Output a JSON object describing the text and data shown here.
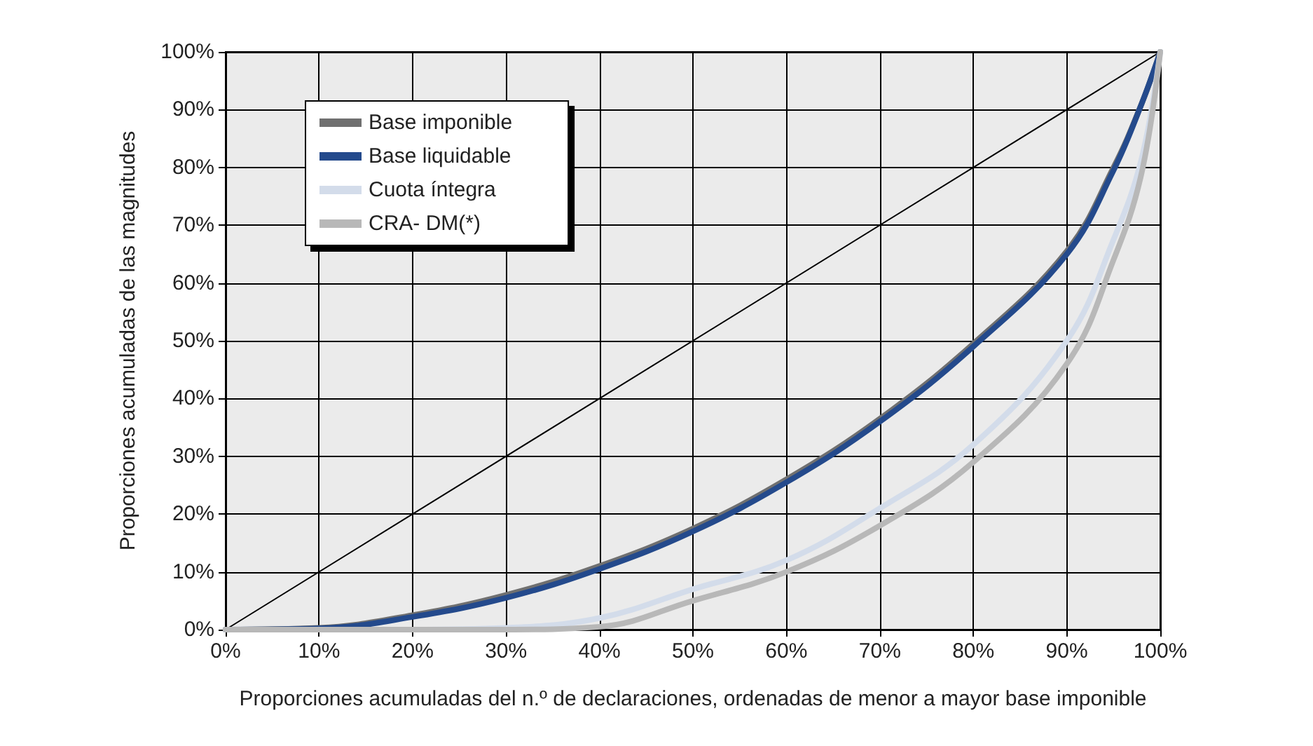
{
  "chart_data": {
    "type": "line",
    "xlabel": "Proporciones acumuladas del n.º de declaraciones, ordenadas de menor a mayor base imponible",
    "ylabel": "Proporciones acumuladas de las magnitudes",
    "x": [
      0,
      10,
      20,
      30,
      40,
      50,
      60,
      70,
      80,
      90,
      95,
      98,
      100
    ],
    "series": [
      {
        "name": "Base imponible",
        "color": "#707070",
        "values": [
          0,
          0.3,
          2.5,
          6,
          11,
          17.5,
          26,
          36.5,
          49.5,
          65.5,
          80,
          91,
          100
        ]
      },
      {
        "name": "Base liquidable",
        "color": "#244a8c",
        "values": [
          0,
          0.2,
          2.2,
          5.5,
          10.5,
          17,
          25.5,
          36,
          49,
          65,
          79.5,
          91,
          100
        ]
      },
      {
        "name": "Cuota íntegra",
        "color": "#d3dcea",
        "values": [
          0,
          0,
          0,
          0.3,
          2,
          7,
          12,
          21,
          32,
          50,
          67.5,
          81.5,
          100
        ]
      },
      {
        "name": "CRA- DM(*)",
        "color": "#b8b8b8",
        "values": [
          0,
          0,
          0,
          0,
          0.5,
          5,
          10,
          18,
          29,
          46,
          64,
          79,
          100
        ]
      },
      {
        "x": [
          0,
          100
        ],
        "color": "#000000",
        "values": [
          0,
          100
        ]
      }
    ],
    "xlim": [
      0,
      100
    ],
    "ylim": [
      0,
      100
    ],
    "xticks": [
      {
        "value": 0,
        "label": "0%"
      },
      {
        "value": 10,
        "label": "10%"
      },
      {
        "value": 20,
        "label": "20%"
      },
      {
        "value": 30,
        "label": "30%"
      },
      {
        "value": 40,
        "label": "40%"
      },
      {
        "value": 50,
        "label": "50%"
      },
      {
        "value": 60,
        "label": "60%"
      },
      {
        "value": 70,
        "label": "70%"
      },
      {
        "value": 80,
        "label": "80%"
      },
      {
        "value": 90,
        "label": "90%"
      },
      {
        "value": 100,
        "label": "100%"
      }
    ],
    "yticks": [
      {
        "value": 0,
        "label": "0%"
      },
      {
        "value": 10,
        "label": "10%"
      },
      {
        "value": 20,
        "label": "20%"
      },
      {
        "value": 30,
        "label": "30%"
      },
      {
        "value": 40,
        "label": "40%"
      },
      {
        "value": 50,
        "label": "50%"
      },
      {
        "value": 60,
        "label": "60%"
      },
      {
        "value": 70,
        "label": "70%"
      },
      {
        "value": 80,
        "label": "80%"
      },
      {
        "value": 90,
        "label": "90%"
      },
      {
        "value": 100,
        "label": "100%"
      }
    ],
    "grid": true,
    "legend": "top left",
    "marker": "none",
    "line_style": "solid"
  }
}
